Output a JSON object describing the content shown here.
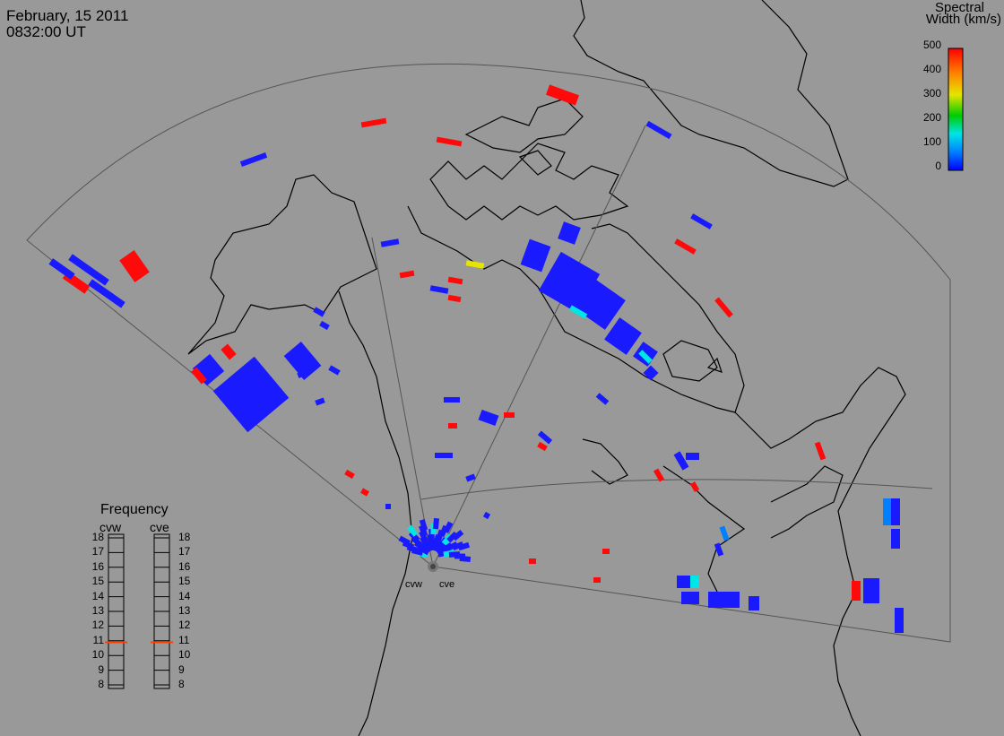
{
  "header": {
    "date": "February, 15 2011",
    "time": "0832:00 UT"
  },
  "colorbar": {
    "title_line1": "Spectral",
    "title_line2": "Width (km/s)",
    "ticks": [
      "500",
      "400",
      "300",
      "200",
      "100",
      "0"
    ],
    "min": 0,
    "max": 500,
    "colors": [
      "#0000ff",
      "#0080ff",
      "#00e5e5",
      "#00cc00",
      "#e5e500",
      "#ff8000",
      "#ff0000"
    ]
  },
  "frequency": {
    "title": "Frequency",
    "radars": [
      "cvw",
      "cve"
    ],
    "ticks": [
      "18",
      "17",
      "16",
      "15",
      "14",
      "13",
      "12",
      "11",
      "10",
      "9",
      "8"
    ],
    "cvw_mhz": 10.9,
    "cve_mhz": 10.9,
    "marker_color": "#ff4000"
  },
  "radars": {
    "west": "cvw",
    "east": "cve"
  },
  "colors": {
    "background": "#999999",
    "outline": "#000000",
    "fov": "#555555",
    "low": "#1a1aff",
    "high": "#ff0a0a"
  }
}
